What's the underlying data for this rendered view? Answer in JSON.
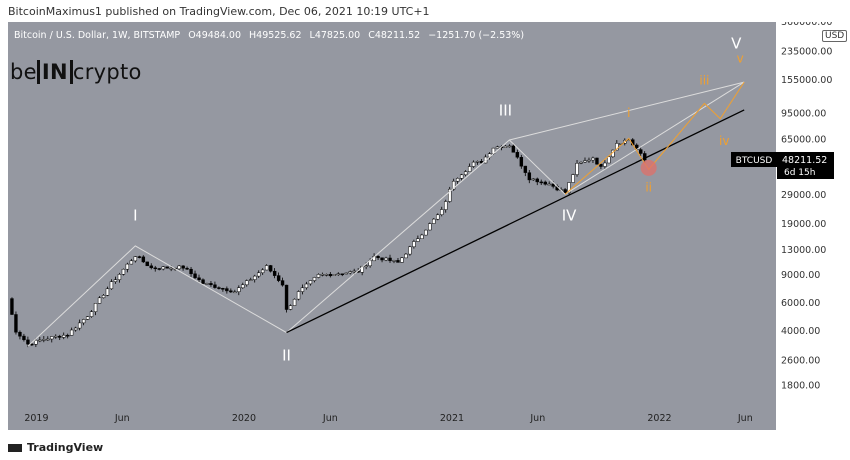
{
  "publish_line": "BitcoinMaximus1 published on TradingView.com, Dec 06, 2021 10:19 UTC+1",
  "symbol_line": "Bitcoin / U.S. Dollar, 1W, BITSTAMP",
  "ohlc": {
    "open": "O49484.00",
    "high": "H49525.62",
    "low": "L47825.00",
    "close": "C48211.52",
    "change": "−1251.70 (−2.53%)"
  },
  "logo": {
    "left": "be",
    "boxed": "IN",
    "right": "crypto"
  },
  "currency_button": "USD",
  "price_tag": {
    "symbol": "BTCUSD",
    "price": "48211.52",
    "countdown": "6d 15h"
  },
  "footer_brand": "TradingView",
  "colors": {
    "background": "#9598a1",
    "bull": "#ffffff",
    "bear": "#000000",
    "white_path": "#dcdcdc",
    "trendline": "#000000",
    "orange": "#f0a030",
    "highlight": "#e0706a"
  },
  "chart_data": {
    "type": "candlestick",
    "title": "Bitcoin / U.S. Dollar, 1W, BITSTAMP",
    "y_scale": "log",
    "ylim": [
      1300,
      360000
    ],
    "y_ticks": [
      1800,
      2600,
      4000,
      6000,
      9000,
      13000,
      19000,
      29000,
      48211.52,
      65000,
      95000,
      155000,
      235000,
      360000
    ],
    "y_tick_labels": [
      "1800.00",
      "2600.00",
      "4000.00",
      "6000.00",
      "9000.00",
      "13000.00",
      "19000.00",
      "29000.00",
      "",
      "65000.00",
      "95000.00",
      "155000.00",
      "235000.00",
      "360000.00"
    ],
    "x_range": [
      "2018-11-12",
      "2022-07-25"
    ],
    "x_ticks": [
      {
        "date": "2019-01-01",
        "label": "2019"
      },
      {
        "date": "2019-06-01",
        "label": "Jun"
      },
      {
        "date": "2020-01-01",
        "label": "2020"
      },
      {
        "date": "2020-06-01",
        "label": "Jun"
      },
      {
        "date": "2021-01-01",
        "label": "2021"
      },
      {
        "date": "2021-06-01",
        "label": "Jun"
      },
      {
        "date": "2022-01-01",
        "label": "2022"
      },
      {
        "date": "2022-06-01",
        "label": "Jun"
      }
    ],
    "price_keypoints": [
      {
        "date": "2018-11-12",
        "price": 6400
      },
      {
        "date": "2018-11-26",
        "price": 4000
      },
      {
        "date": "2018-12-17",
        "price": 3300
      },
      {
        "date": "2019-01-14",
        "price": 3550
      },
      {
        "date": "2019-02-25",
        "price": 3800
      },
      {
        "date": "2019-04-01",
        "price": 5000
      },
      {
        "date": "2019-05-13",
        "price": 8000
      },
      {
        "date": "2019-06-24",
        "price": 12000
      },
      {
        "date": "2019-07-22",
        "price": 10000
      },
      {
        "date": "2019-09-16",
        "price": 10100
      },
      {
        "date": "2019-10-21",
        "price": 8000
      },
      {
        "date": "2019-12-16",
        "price": 7100
      },
      {
        "date": "2020-02-10",
        "price": 10200
      },
      {
        "date": "2020-03-09",
        "price": 7900
      },
      {
        "date": "2020-03-16",
        "price": 5400
      },
      {
        "date": "2020-04-06",
        "price": 7000
      },
      {
        "date": "2020-05-11",
        "price": 9000
      },
      {
        "date": "2020-07-20",
        "price": 9500
      },
      {
        "date": "2020-08-17",
        "price": 11800
      },
      {
        "date": "2020-09-28",
        "price": 10800
      },
      {
        "date": "2020-11-02",
        "price": 15500
      },
      {
        "date": "2020-12-14",
        "price": 23000
      },
      {
        "date": "2021-01-04",
        "price": 36000
      },
      {
        "date": "2021-02-08",
        "price": 46000
      },
      {
        "date": "2021-02-22",
        "price": 47000
      },
      {
        "date": "2021-03-15",
        "price": 58000
      },
      {
        "date": "2021-04-12",
        "price": 60000
      },
      {
        "date": "2021-05-17",
        "price": 37000
      },
      {
        "date": "2021-06-21",
        "price": 34000
      },
      {
        "date": "2021-07-19",
        "price": 30000
      },
      {
        "date": "2021-08-09",
        "price": 45000
      },
      {
        "date": "2021-09-06",
        "price": 50000
      },
      {
        "date": "2021-09-20",
        "price": 43000
      },
      {
        "date": "2021-10-18",
        "price": 62000
      },
      {
        "date": "2021-11-08",
        "price": 65000
      },
      {
        "date": "2021-11-22",
        "price": 56000
      },
      {
        "date": "2021-12-06",
        "price": 48211.52
      }
    ],
    "wave_path": [
      {
        "date": "2018-12-17",
        "price": 3200
      },
      {
        "date": "2019-06-24",
        "price": 13800
      },
      {
        "date": "2020-03-16",
        "price": 3900
      },
      {
        "date": "2021-04-12",
        "price": 64500
      },
      {
        "date": "2021-07-19",
        "price": 29300
      },
      {
        "date": "2022-05-30",
        "price": 150000
      }
    ],
    "upper_channel": [
      {
        "date": "2021-04-12",
        "price": 64500
      },
      {
        "date": "2022-05-30",
        "price": 150000
      }
    ],
    "trendline": [
      {
        "date": "2020-03-16",
        "price": 3900
      },
      {
        "date": "2022-05-30",
        "price": 100000
      }
    ],
    "sub_wave_path": [
      {
        "date": "2021-07-19",
        "price": 29300
      },
      {
        "date": "2021-11-08",
        "price": 66000
      },
      {
        "date": "2021-12-13",
        "price": 42000
      },
      {
        "date": "2022-03-21",
        "price": 110000
      },
      {
        "date": "2022-04-18",
        "price": 88000
      },
      {
        "date": "2022-05-30",
        "price": 150000
      }
    ],
    "highlight_circle": {
      "date": "2021-12-13",
      "price": 43000
    },
    "wave_labels": [
      {
        "text": "I",
        "date": "2019-06-24",
        "price": 20000,
        "color": "#ffffff"
      },
      {
        "text": "II",
        "date": "2020-03-16",
        "price": 2600,
        "color": "#ffffff"
      },
      {
        "text": "III",
        "date": "2021-04-05",
        "price": 92000,
        "color": "#ffffff"
      },
      {
        "text": "IV",
        "date": "2021-07-26",
        "price": 20000,
        "color": "#ffffff"
      },
      {
        "text": "V",
        "date": "2022-05-16",
        "price": 245000,
        "color": "#ffffff"
      },
      {
        "text": "i",
        "date": "2021-11-08",
        "price": 90000,
        "color": "#f0a030"
      },
      {
        "text": "ii",
        "date": "2021-12-13",
        "price": 30500,
        "color": "#f0a030"
      },
      {
        "text": "iii",
        "date": "2022-03-21",
        "price": 145000,
        "color": "#f0a030"
      },
      {
        "text": "iv",
        "date": "2022-04-25",
        "price": 60000,
        "color": "#f0a030"
      },
      {
        "text": "v",
        "date": "2022-05-23",
        "price": 200000,
        "color": "#f0a030"
      }
    ],
    "grid": false,
    "legend": "none"
  }
}
